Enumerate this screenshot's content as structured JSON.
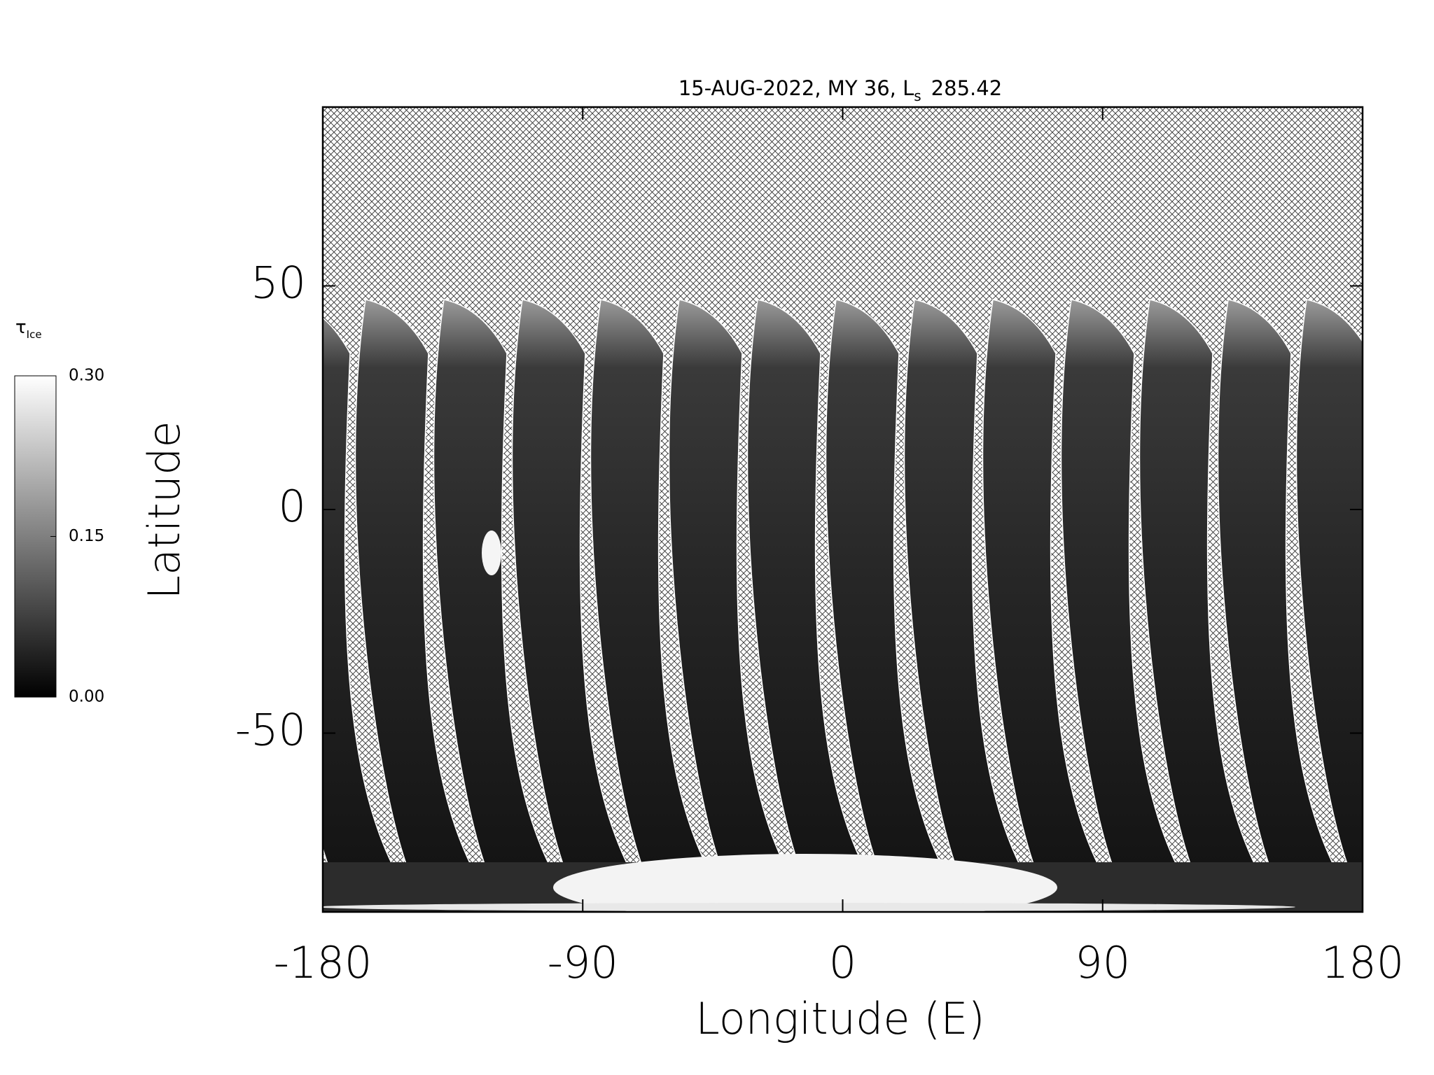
{
  "chart_data": {
    "type": "map",
    "title": "15-AUG-2022, MY 36,  L",
    "title_subscript": "s",
    "title_suffix": "285.42",
    "x_label": "Longitude (E)",
    "y_label": "Latitude",
    "xlim": [
      -180,
      180
    ],
    "xticks": [
      -180,
      -90,
      0,
      90,
      180
    ],
    "ylim": [
      -90,
      90
    ],
    "yticks": [
      -50,
      0,
      50
    ],
    "colorbar": {
      "label": "τ",
      "label_subscript": "Ice",
      "clim": [
        0,
        0.3
      ],
      "ticks": [
        {
          "value": 0,
          "label": "0.00"
        },
        {
          "value": 0.15,
          "label": "0.15"
        },
        {
          "value": 0.3,
          "label": "0.30"
        }
      ],
      "colors": [
        "#000000",
        "#ffffff"
      ]
    }
  }
}
